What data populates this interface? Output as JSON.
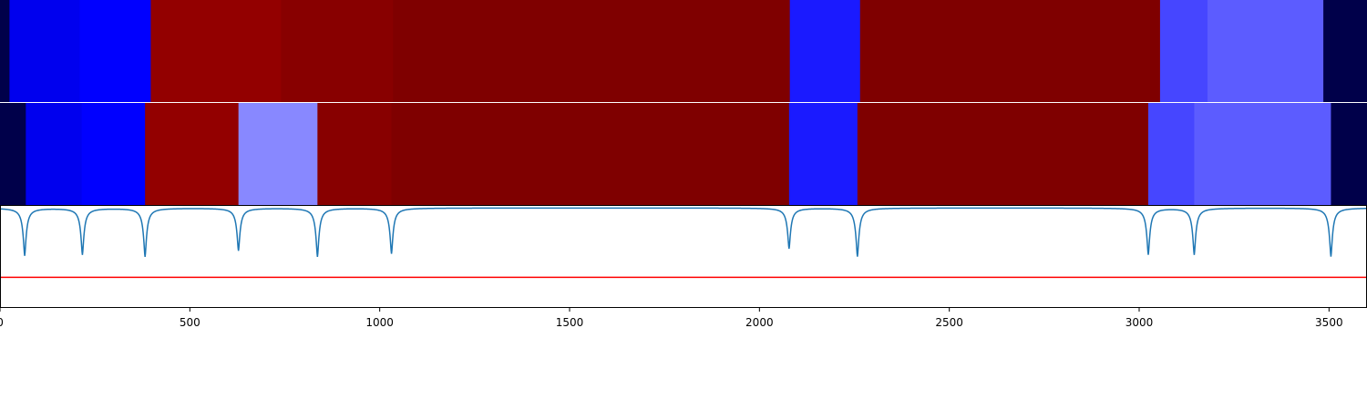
{
  "chart_data": [
    {
      "type": "heatmap",
      "title": "",
      "xlabel": "",
      "ylabel": "",
      "xlim": [
        0,
        3600
      ],
      "rows": [
        {
          "segments": [
            {
              "start": 0,
              "end": 25,
              "color": "#00004a"
            },
            {
              "start": 25,
              "end": 210,
              "color": "#0000ee"
            },
            {
              "start": 210,
              "end": 397,
              "color": "#0000ff"
            },
            {
              "start": 397,
              "end": 740,
              "color": "#930000"
            },
            {
              "start": 740,
              "end": 1035,
              "color": "#880000"
            },
            {
              "start": 1035,
              "end": 2080,
              "color": "#7f0000"
            },
            {
              "start": 2080,
              "end": 2265,
              "color": "#1a1aff"
            },
            {
              "start": 2265,
              "end": 3055,
              "color": "#7f0000"
            },
            {
              "start": 3055,
              "end": 3180,
              "color": "#4646ff"
            },
            {
              "start": 3180,
              "end": 3485,
              "color": "#5c5cff"
            },
            {
              "start": 3485,
              "end": 3600,
              "color": "#00004a"
            }
          ]
        },
        {
          "segments": [
            {
              "start": 0,
              "end": 68,
              "color": "#00004a"
            },
            {
              "start": 68,
              "end": 215,
              "color": "#0000ee"
            },
            {
              "start": 215,
              "end": 382,
              "color": "#0000ff"
            },
            {
              "start": 382,
              "end": 628,
              "color": "#930000"
            },
            {
              "start": 628,
              "end": 836,
              "color": "#8888ff"
            },
            {
              "start": 836,
              "end": 1031,
              "color": "#880000"
            },
            {
              "start": 1031,
              "end": 2078,
              "color": "#7f0000"
            },
            {
              "start": 2078,
              "end": 2258,
              "color": "#1a1aff"
            },
            {
              "start": 2258,
              "end": 3024,
              "color": "#7f0000"
            },
            {
              "start": 3024,
              "end": 3145,
              "color": "#4646ff"
            },
            {
              "start": 3145,
              "end": 3505,
              "color": "#5c5cff"
            },
            {
              "start": 3505,
              "end": 3600,
              "color": "#00004a"
            }
          ]
        }
      ]
    },
    {
      "type": "line",
      "title": "",
      "xlabel": "",
      "ylabel": "",
      "xlim": [
        0,
        3600
      ],
      "ylim": [
        -1.0,
        0.02
      ],
      "x_ticks": [
        0,
        500,
        1000,
        1500,
        2000,
        2500,
        3000,
        3500
      ],
      "x_tick_labels": [
        "0",
        "500",
        "1000",
        "1500",
        "2000",
        "2500",
        "3000",
        "3500"
      ],
      "baseline": 0,
      "dips": [
        {
          "x": 65,
          "depth": -0.48
        },
        {
          "x": 217,
          "depth": -0.47
        },
        {
          "x": 382,
          "depth": -0.49
        },
        {
          "x": 628,
          "depth": -0.43
        },
        {
          "x": 836,
          "depth": -0.49
        },
        {
          "x": 1031,
          "depth": -0.46
        },
        {
          "x": 2078,
          "depth": -0.41
        },
        {
          "x": 2258,
          "depth": -0.49
        },
        {
          "x": 3024,
          "depth": -0.47
        },
        {
          "x": 3145,
          "depth": -0.47
        },
        {
          "x": 3505,
          "depth": -0.49
        }
      ],
      "threshold": -0.7,
      "series_color": "#1f77b4",
      "threshold_color": "#ff0000"
    }
  ]
}
